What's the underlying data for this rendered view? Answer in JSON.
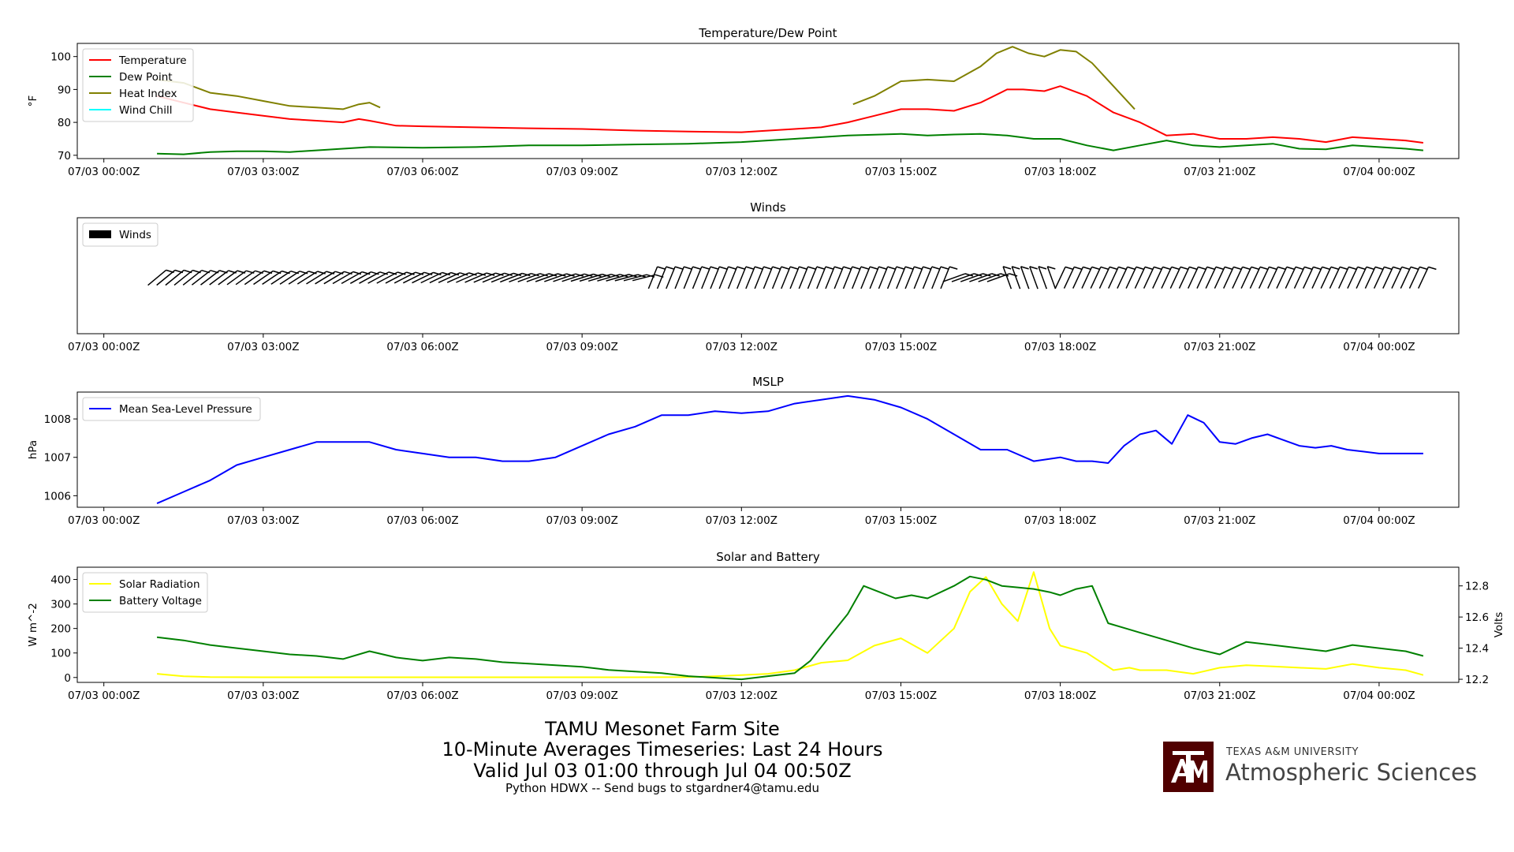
{
  "footer": {
    "line1": "TAMU Mesonet Farm Site",
    "line2": "10-Minute Averages Timeseries: Last 24 Hours",
    "line3": "Valid Jul 03 01:00 through Jul 04 00:50Z",
    "line4": "Python HDWX -- Send bugs to stgardner4@tamu.edu"
  },
  "logo": {
    "university": "TEXAS A&M UNIVERSITY",
    "department": "Atmospheric Sciences",
    "color": "#500000"
  },
  "chart_data": [
    {
      "type": "line",
      "title": "Temperature/Dew Point",
      "xlabel": "",
      "ylabel": "°F",
      "xlim": [
        -0.5,
        25.5
      ],
      "ylim": [
        69,
        104
      ],
      "yticks": [
        70,
        80,
        90,
        100
      ],
      "xticks": [
        0,
        3,
        6,
        9,
        12,
        15,
        18,
        21,
        24
      ],
      "xtick_labels": [
        "07/03 00:00Z",
        "07/03 03:00Z",
        "07/03 06:00Z",
        "07/03 09:00Z",
        "07/03 12:00Z",
        "07/03 15:00Z",
        "07/03 18:00Z",
        "07/03 21:00Z",
        "07/04 00:00Z"
      ],
      "legend": "top-left",
      "series": [
        {
          "name": "Temperature",
          "color": "#ff0000",
          "x": [
            1,
            1.5,
            2,
            2.5,
            3,
            3.5,
            4,
            4.5,
            4.8,
            5,
            5.5,
            6,
            7,
            8,
            9,
            10,
            11,
            12,
            13,
            13.5,
            14,
            14.5,
            15,
            15.5,
            16,
            16.5,
            17,
            17.3,
            17.7,
            18,
            18.5,
            19,
            19.5,
            20,
            20.5,
            21,
            21.5,
            22,
            22.5,
            23,
            23.5,
            24,
            24.5,
            24.83
          ],
          "y": [
            88,
            86,
            84,
            83,
            82,
            81,
            80.5,
            80,
            81,
            80.5,
            79,
            78.8,
            78.5,
            78.2,
            78,
            77.5,
            77.2,
            77,
            78,
            78.5,
            80,
            82,
            84,
            84,
            83.5,
            86,
            90,
            90,
            89.5,
            91,
            88,
            83,
            80,
            76,
            76.5,
            75,
            75,
            75.5,
            75,
            74,
            75.5,
            75,
            74.5,
            73.8
          ]
        },
        {
          "name": "Dew Point",
          "color": "#008000",
          "x": [
            1,
            1.5,
            2,
            2.5,
            3,
            3.5,
            4,
            4.5,
            5,
            6,
            7,
            8,
            9,
            10,
            11,
            12,
            13,
            14,
            15,
            15.5,
            16,
            16.5,
            17,
            17.5,
            18,
            18.5,
            19,
            19.5,
            20,
            20.5,
            21,
            21.5,
            22,
            22.5,
            23,
            23.5,
            24,
            24.5,
            24.83
          ],
          "y": [
            70.5,
            70.3,
            71,
            71.2,
            71.2,
            71,
            71.5,
            72,
            72.5,
            72.3,
            72.5,
            73,
            73,
            73.3,
            73.5,
            74,
            75,
            76,
            76.5,
            76,
            76.3,
            76.5,
            76,
            75,
            75,
            73,
            71.5,
            73,
            74.5,
            73,
            72.5,
            73,
            73.5,
            72,
            71.8,
            73,
            72.5,
            72,
            71.5
          ]
        },
        {
          "name": "Heat Index",
          "color": "#808000",
          "x": [
            1,
            1.5,
            2,
            2.5,
            3,
            3.5,
            4,
            4.5,
            4.8,
            5,
            5.2,
            14.1,
            14.5,
            15,
            15.5,
            16,
            16.5,
            16.8,
            17.1,
            17.4,
            17.7,
            18,
            18.3,
            18.6,
            19,
            19.4
          ],
          "y": [
            93,
            92,
            89,
            88,
            86.5,
            85,
            84.5,
            84,
            85.5,
            86,
            84.5,
            85.5,
            88,
            92.5,
            93,
            92.5,
            97,
            101,
            103,
            101,
            100,
            102,
            101.5,
            98,
            91,
            84
          ]
        },
        {
          "name": "Wind Chill",
          "color": "#00ffff",
          "x": [],
          "y": []
        }
      ]
    },
    {
      "type": "barbs",
      "title": "Winds",
      "xlabel": "",
      "ylabel": "",
      "xlim": [
        -0.5,
        25.5
      ],
      "xticks": [
        0,
        3,
        6,
        9,
        12,
        15,
        18,
        21,
        24
      ],
      "xtick_labels": [
        "07/03 00:00Z",
        "07/03 03:00Z",
        "07/03 06:00Z",
        "07/03 09:00Z",
        "07/03 12:00Z",
        "07/03 15:00Z",
        "07/03 18:00Z",
        "07/03 21:00Z",
        "07/04 00:00Z"
      ],
      "legend": "top-left",
      "series": [
        {
          "name": "Winds",
          "color": "#000000"
        }
      ]
    },
    {
      "type": "line",
      "title": "MSLP",
      "xlabel": "",
      "ylabel": "hPa",
      "xlim": [
        -0.5,
        25.5
      ],
      "ylim": [
        1005.7,
        1008.7
      ],
      "yticks": [
        1006,
        1007,
        1008
      ],
      "xticks": [
        0,
        3,
        6,
        9,
        12,
        15,
        18,
        21,
        24
      ],
      "xtick_labels": [
        "07/03 00:00Z",
        "07/03 03:00Z",
        "07/03 06:00Z",
        "07/03 09:00Z",
        "07/03 12:00Z",
        "07/03 15:00Z",
        "07/03 18:00Z",
        "07/03 21:00Z",
        "07/04 00:00Z"
      ],
      "legend": "top-left",
      "series": [
        {
          "name": "Mean Sea-Level Pressure",
          "color": "#0000ff",
          "x": [
            1,
            1.5,
            2,
            2.5,
            3,
            3.5,
            4,
            4.5,
            5,
            5.5,
            6,
            6.5,
            7,
            7.5,
            8,
            8.5,
            9,
            9.5,
            10,
            10.5,
            11,
            11.5,
            12,
            12.5,
            13,
            13.5,
            14,
            14.5,
            15,
            15.5,
            16,
            16.5,
            17,
            17.5,
            18,
            18.3,
            18.6,
            18.9,
            19.2,
            19.5,
            19.8,
            20.1,
            20.4,
            20.7,
            21,
            21.3,
            21.6,
            21.9,
            22.2,
            22.5,
            22.8,
            23.1,
            23.4,
            23.7,
            24,
            24.3,
            24.6,
            24.83
          ],
          "y": [
            1005.8,
            1006.1,
            1006.4,
            1006.8,
            1007.0,
            1007.2,
            1007.4,
            1007.4,
            1007.4,
            1007.2,
            1007.1,
            1007.0,
            1007.0,
            1006.9,
            1006.9,
            1007.0,
            1007.3,
            1007.6,
            1007.8,
            1008.1,
            1008.1,
            1008.2,
            1008.15,
            1008.2,
            1008.4,
            1008.5,
            1008.6,
            1008.5,
            1008.3,
            1008.0,
            1007.6,
            1007.2,
            1007.2,
            1006.9,
            1007.0,
            1006.9,
            1006.9,
            1006.85,
            1007.3,
            1007.6,
            1007.7,
            1007.35,
            1008.1,
            1007.9,
            1007.4,
            1007.35,
            1007.5,
            1007.6,
            1007.45,
            1007.3,
            1007.25,
            1007.3,
            1007.2,
            1007.15,
            1007.1,
            1007.1,
            1007.1,
            1007.1
          ]
        }
      ]
    },
    {
      "type": "line",
      "title": "Solar and Battery",
      "xlabel": "",
      "ylabel": "W m^-2",
      "ylabel_right": "Volts",
      "xlim": [
        -0.5,
        25.5
      ],
      "ylim": [
        -20,
        450
      ],
      "yticks": [
        0,
        100,
        200,
        300,
        400
      ],
      "ylim_right": [
        12.18,
        12.92
      ],
      "yticks_right": [
        12.2,
        12.4,
        12.6,
        12.8
      ],
      "xticks": [
        0,
        3,
        6,
        9,
        12,
        15,
        18,
        21,
        24
      ],
      "xtick_labels": [
        "07/03 00:00Z",
        "07/03 03:00Z",
        "07/03 06:00Z",
        "07/03 09:00Z",
        "07/03 12:00Z",
        "07/03 15:00Z",
        "07/03 18:00Z",
        "07/03 21:00Z",
        "07/04 00:00Z"
      ],
      "legend": "top-left",
      "series": [
        {
          "name": "Solar Radiation",
          "color": "#ffff00",
          "axis": "left",
          "x": [
            1,
            1.5,
            2,
            3,
            4,
            5,
            6,
            7,
            8,
            9,
            10,
            11,
            11.5,
            12,
            12.5,
            13,
            13.5,
            14,
            14.5,
            15,
            15.5,
            16,
            16.3,
            16.6,
            16.9,
            17.2,
            17.5,
            17.8,
            18,
            18.5,
            19,
            19.3,
            19.5,
            20,
            20.5,
            21,
            21.5,
            22,
            22.5,
            23,
            23.5,
            24,
            24.5,
            24.83
          ],
          "y": [
            15,
            5,
            2,
            1,
            1,
            1,
            1,
            1,
            1,
            1,
            1,
            2,
            5,
            10,
            15,
            30,
            60,
            70,
            130,
            160,
            100,
            200,
            350,
            410,
            300,
            230,
            430,
            200,
            130,
            100,
            30,
            40,
            30,
            30,
            15,
            40,
            50,
            45,
            40,
            35,
            55,
            40,
            30,
            10
          ]
        },
        {
          "name": "Battery Voltage",
          "color": "#008000",
          "axis": "right",
          "x": [
            1,
            1.5,
            2,
            2.5,
            3,
            3.5,
            4,
            4.5,
            5,
            5.5,
            6,
            6.5,
            7,
            7.5,
            8,
            8.5,
            9,
            9.5,
            10,
            10.5,
            11,
            11.5,
            12,
            12.5,
            13,
            13.3,
            13.6,
            14,
            14.3,
            14.6,
            14.9,
            15.2,
            15.5,
            16,
            16.3,
            16.6,
            16.9,
            17.2,
            17.5,
            17.8,
            18,
            18.3,
            18.6,
            18.9,
            19.2,
            19.5,
            20,
            20.5,
            21,
            21.5,
            22,
            22.5,
            23,
            23.5,
            24,
            24.5,
            24.83
          ],
          "y": [
            12.47,
            12.45,
            12.42,
            12.4,
            12.38,
            12.36,
            12.35,
            12.33,
            12.38,
            12.34,
            12.32,
            12.34,
            12.33,
            12.31,
            12.3,
            12.29,
            12.28,
            12.26,
            12.25,
            12.24,
            12.22,
            12.21,
            12.2,
            12.22,
            12.24,
            12.32,
            12.45,
            12.62,
            12.8,
            12.76,
            12.72,
            12.74,
            12.72,
            12.8,
            12.86,
            12.84,
            12.8,
            12.79,
            12.78,
            12.76,
            12.74,
            12.78,
            12.8,
            12.56,
            12.53,
            12.5,
            12.45,
            12.4,
            12.36,
            12.44,
            12.42,
            12.4,
            12.38,
            12.42,
            12.4,
            12.38,
            12.35
          ]
        }
      ]
    }
  ]
}
